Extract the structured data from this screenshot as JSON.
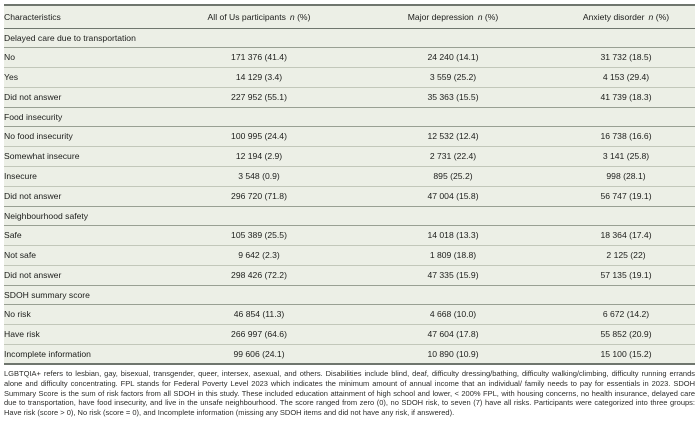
{
  "table": {
    "n_symbol": "n",
    "pct_symbol": "(%)",
    "columns": [
      {
        "label": "Characteristics"
      },
      {
        "label": "All of Us participants"
      },
      {
        "label": "Major depression"
      },
      {
        "label": "Anxiety disorder"
      }
    ],
    "sections": [
      {
        "title": "Delayed care due to transportation",
        "rows": [
          {
            "label": "No",
            "values": [
              "171 376 (41.4)",
              "24 240 (14.1)",
              "31 732 (18.5)"
            ]
          },
          {
            "label": "Yes",
            "values": [
              "14 129 (3.4)",
              "3 559 (25.2)",
              "4 153 (29.4)"
            ]
          },
          {
            "label": "Did not answer",
            "values": [
              "227 952 (55.1)",
              "35 363 (15.5)",
              "41 739 (18.3)"
            ]
          }
        ]
      },
      {
        "title": "Food insecurity",
        "rows": [
          {
            "label": "No food insecurity",
            "values": [
              "100 995 (24.4)",
              "12 532 (12.4)",
              "16 738 (16.6)"
            ]
          },
          {
            "label": "Somewhat insecure",
            "values": [
              "12 194 (2.9)",
              "2 731 (22.4)",
              "3 141 (25.8)"
            ]
          },
          {
            "label": "Insecure",
            "values": [
              "3 548 (0.9)",
              "895 (25.2)",
              "998 (28.1)"
            ]
          },
          {
            "label": "Did not answer",
            "values": [
              "296 720 (71.8)",
              "47 004 (15.8)",
              "56 747 (19.1)"
            ]
          }
        ]
      },
      {
        "title": "Neighbourhood safety",
        "rows": [
          {
            "label": "Safe",
            "values": [
              "105 389 (25.5)",
              "14 018 (13.3)",
              "18 364 (17.4)"
            ]
          },
          {
            "label": "Not safe",
            "values": [
              "9 642 (2.3)",
              "1 809 (18.8)",
              "2 125 (22)"
            ]
          },
          {
            "label": "Did not answer",
            "values": [
              "298 426 (72.2)",
              "47 335 (15.9)",
              "57 135 (19.1)"
            ]
          }
        ]
      },
      {
        "title": "SDOH summary score",
        "rows": [
          {
            "label": "No risk",
            "values": [
              "46 854 (11.3)",
              "4 668 (10.0)",
              "6 672 (14.2)"
            ]
          },
          {
            "label": "Have risk",
            "values": [
              "266 997 (64.6)",
              "47 604 (17.8)",
              "55 852 (20.9)"
            ]
          },
          {
            "label": "Incomplete information",
            "values": [
              "99 606 (24.1)",
              "10 890 (10.9)",
              "15 100 (15.2)"
            ]
          }
        ]
      }
    ]
  },
  "footnote": "LGBTQIA+ refers to lesbian, gay, bisexual, transgender, queer, intersex, asexual, and others. Disabilities include blind, deaf, difficulty dressing/bathing, difficulty walking/climbing, difficulty running errands alone and difficulty concentrating. FPL stands for Federal Poverty Level 2023 which indicates the minimum amount of annual income that an individual/ family needs to pay for essentials in 2023. SDOH Summary Score is the sum of risk factors from all SDOH in this study. These included education attainment of high school and lower, < 200% FPL, with housing concerns, no health insurance, delayed care due to transportation, have food insecurity, and live in the unsafe neighbourhood. The score ranged from zero (0), no SDOH risk, to seven (7) have all risks. Participants were categorized into three groups: Have risk (score > 0), No risk (score = 0), and Incomplete information (missing any SDOH items and did not have any risk, if answered)."
}
